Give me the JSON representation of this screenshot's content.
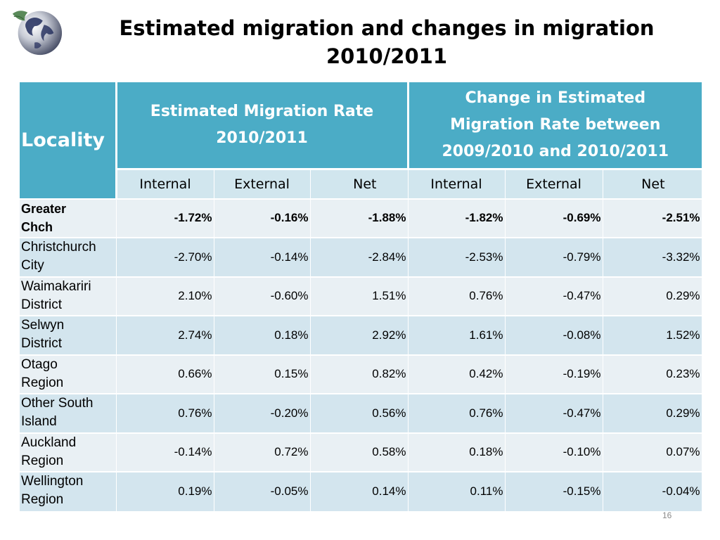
{
  "title_line1": "Estimated migration and changes in migration",
  "title_line2": "2010/2011",
  "header": {
    "locality": "Locality",
    "group1_line1": "Estimated Migration Rate",
    "group1_line2": "2010/2011",
    "group2_line1": "Change in Estimated",
    "group2_line2": "Migration Rate between",
    "group2_line3": "2009/2010 and 2010/2011",
    "sub": [
      "Internal",
      "External",
      "Net",
      "Internal",
      "External",
      "Net"
    ]
  },
  "rows": [
    {
      "l1": "Greater",
      "l2": "Chch",
      "v": [
        "-1.72%",
        "-0.16%",
        "-1.88%",
        "-1.82%",
        "-0.69%",
        "-2.51%"
      ]
    },
    {
      "l1": "Christchurch",
      "l2": "City",
      "v": [
        "-2.70%",
        "-0.14%",
        "-2.84%",
        "-2.53%",
        "-0.79%",
        "-3.32%"
      ]
    },
    {
      "l1": "Waimakariri",
      "l2": "District",
      "v": [
        "2.10%",
        "-0.60%",
        "1.51%",
        "0.76%",
        "-0.47%",
        "0.29%"
      ]
    },
    {
      "l1": "Selwyn",
      "l2": "District",
      "v": [
        "2.74%",
        "0.18%",
        "2.92%",
        "1.61%",
        "-0.08%",
        "1.52%"
      ]
    },
    {
      "l1": "Otago",
      "l2": "Region",
      "v": [
        "0.66%",
        "0.15%",
        "0.82%",
        "0.42%",
        "-0.19%",
        "0.23%"
      ]
    },
    {
      "l1": "Other South",
      "l2": "Island",
      "v": [
        "0.76%",
        "-0.20%",
        "0.56%",
        "0.76%",
        "-0.47%",
        "0.29%"
      ]
    },
    {
      "l1": "Auckland",
      "l2": "Region",
      "v": [
        "-0.14%",
        "0.72%",
        "0.58%",
        "0.18%",
        "-0.10%",
        "0.07%"
      ]
    },
    {
      "l1": "Wellington",
      "l2": "Region",
      "v": [
        "0.19%",
        "-0.05%",
        "0.14%",
        "0.11%",
        "-0.15%",
        "-0.04%"
      ]
    }
  ],
  "page_number": "16",
  "colors": {
    "header": "#4bacc6",
    "row_light": "#e9f0f4",
    "row_dark": "#d3e5ee"
  }
}
